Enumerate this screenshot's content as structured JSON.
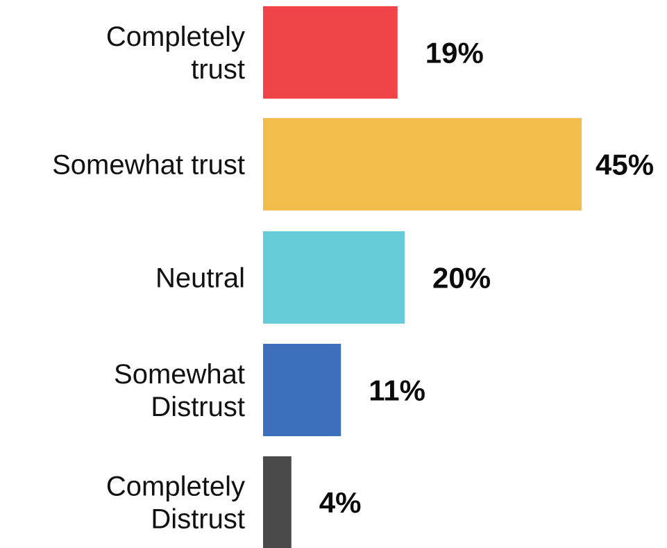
{
  "chart_data": {
    "type": "bar",
    "orientation": "horizontal",
    "categories": [
      [
        "Completely",
        "trust"
      ],
      [
        "Somewhat trust"
      ],
      [
        "Neutral"
      ],
      [
        "Somewhat",
        "Distrust"
      ],
      [
        "Completely",
        "Distrust"
      ]
    ],
    "values": [
      19,
      45,
      20,
      11,
      4
    ],
    "value_labels": [
      "19%",
      "45%",
      "20%",
      "11%",
      "4%"
    ],
    "colors": [
      "#f04449",
      "#f2bd4a",
      "#67ccda",
      "#3d6fbd",
      "#4a4a4a"
    ],
    "unit": "%",
    "xlim": [
      0,
      45
    ],
    "grid": false,
    "legend": "none"
  }
}
